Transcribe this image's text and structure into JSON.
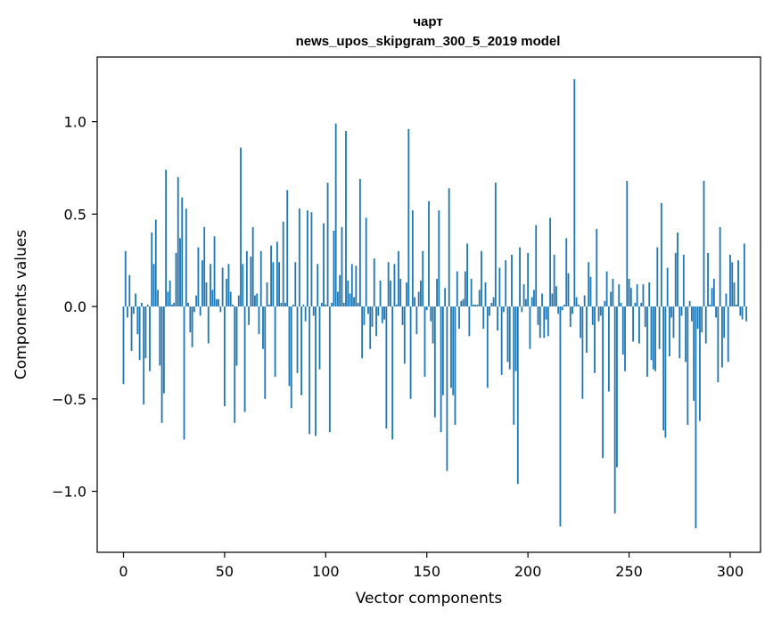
{
  "chart_data": {
    "type": "bar",
    "title": "чарт",
    "subtitle": "news_upos_skipgram_300_5_2019 model",
    "xlabel": "Vector components",
    "ylabel": "Components values",
    "xlim": [
      -13,
      315
    ],
    "ylim": [
      -1.33,
      1.35
    ],
    "xticks": [
      0,
      50,
      100,
      150,
      200,
      250,
      300
    ],
    "xtick_labels": [
      "0",
      "50",
      "100",
      "150",
      "200",
      "250",
      "300"
    ],
    "yticks": [
      -1.0,
      -0.5,
      0.0,
      0.5,
      1.0
    ],
    "ytick_labels": [
      "−1.0",
      "−0.5",
      "0.0",
      "0.5",
      "1.0"
    ],
    "bar_color": "#1f77b4",
    "grid": false,
    "legend": "none",
    "values": [
      -0.42,
      0.3,
      -0.06,
      0.17,
      -0.24,
      -0.04,
      0.07,
      -0.15,
      -0.29,
      0.02,
      -0.53,
      -0.28,
      0.01,
      -0.35,
      0.4,
      0.23,
      0.47,
      0.09,
      -0.32,
      -0.63,
      -0.47,
      0.74,
      0.08,
      0.14,
      0.01,
      0.02,
      0.29,
      0.7,
      0.37,
      0.59,
      -0.72,
      0.53,
      0.02,
      -0.14,
      -0.22,
      -0.03,
      0.06,
      0.32,
      -0.05,
      0.25,
      0.43,
      0.13,
      -0.2,
      0.23,
      0.09,
      0.38,
      0.04,
      0.04,
      -0.03,
      0.21,
      -0.54,
      0.15,
      0.23,
      0.08,
      0.01,
      -0.63,
      -0.32,
      0.06,
      0.86,
      0.23,
      -0.57,
      0.3,
      -0.1,
      0.27,
      0.43,
      0.06,
      0.07,
      -0.15,
      0.3,
      -0.23,
      -0.5,
      0.13,
      0.01,
      0.33,
      0.24,
      -0.38,
      0.35,
      0.24,
      0.02,
      0.46,
      0.02,
      0.63,
      -0.43,
      -0.55,
      0.01,
      0.24,
      -0.36,
      0.53,
      -0.48,
      0.01,
      -0.08,
      0.52,
      -0.69,
      0.51,
      -0.05,
      -0.7,
      0.23,
      -0.34,
      0.02,
      0.45,
      0.01,
      0.67,
      -0.68,
      0.02,
      0.41,
      0.99,
      0.08,
      0.17,
      0.43,
      0.02,
      0.95,
      0.14,
      0.07,
      0.23,
      0.05,
      0.22,
      0.02,
      0.69,
      -0.28,
      -0.1,
      0.48,
      -0.04,
      -0.23,
      -0.11,
      0.26,
      -0.16,
      -0.05,
      0.14,
      -0.09,
      -0.07,
      -0.66,
      0.24,
      0.14,
      -0.72,
      0.23,
      0.01,
      0.3,
      0.15,
      -0.1,
      -0.31,
      0.13,
      0.96,
      -0.5,
      0.52,
      0.05,
      -0.15,
      0.08,
      0.14,
      0.3,
      -0.38,
      -0.02,
      0.57,
      -0.08,
      -0.2,
      -0.6,
      0.15,
      0.52,
      -0.68,
      -0.48,
      0.1,
      -0.89,
      0.64,
      -0.44,
      -0.48,
      -0.64,
      0.19,
      -0.12,
      0.03,
      0.04,
      0.19,
      0.34,
      -0.16,
      0.15,
      0.01,
      0.01,
      0.01,
      0.09,
      0.3,
      -0.12,
      0.13,
      -0.44,
      -0.05,
      0.02,
      0.05,
      0.67,
      -0.13,
      0.21,
      -0.37,
      -0.03,
      0.25,
      -0.3,
      -0.34,
      0.28,
      -0.64,
      -0.35,
      -0.96,
      0.32,
      -0.03,
      0.12,
      0.04,
      0.29,
      -0.23,
      0.05,
      0.09,
      0.44,
      -0.1,
      -0.17,
      0.07,
      -0.17,
      -0.07,
      -0.16,
      0.48,
      0.07,
      0.28,
      0.11,
      -0.04,
      -1.19,
      -0.02,
      0.01,
      0.37,
      0.18,
      -0.11,
      -0.04,
      1.23,
      0.05,
      0.01,
      -0.17,
      -0.5,
      0.06,
      -0.25,
      0.24,
      0.16,
      -0.1,
      -0.36,
      0.42,
      -0.08,
      -0.05,
      -0.82,
      0.03,
      0.19,
      -0.46,
      0.08,
      0.15,
      -1.12,
      -0.87,
      0.12,
      0.02,
      -0.26,
      -0.35,
      0.68,
      0.15,
      0.1,
      -0.19,
      0.02,
      0.12,
      -0.2,
      0.02,
      0.12,
      -0.11,
      -0.38,
      0.13,
      -0.29,
      -0.34,
      -0.35,
      0.32,
      -0.23,
      0.56,
      -0.67,
      -0.71,
      0.21,
      -0.27,
      -0.06,
      -0.17,
      0.29,
      0.4,
      -0.28,
      -0.05,
      0.28,
      -0.3,
      -0.64,
      0.03,
      -0.08,
      -0.51,
      -1.2,
      -0.12,
      -0.62,
      -0.14,
      0.68,
      -0.2,
      0.29,
      0.01,
      0.1,
      0.15,
      -0.06,
      -0.41,
      0.43,
      -0.33,
      -0.17,
      0.07,
      -0.3,
      0.28,
      0.24,
      0.13,
      0.01,
      0.25,
      -0.05,
      -0.07,
      0.34,
      -0.08
    ]
  }
}
